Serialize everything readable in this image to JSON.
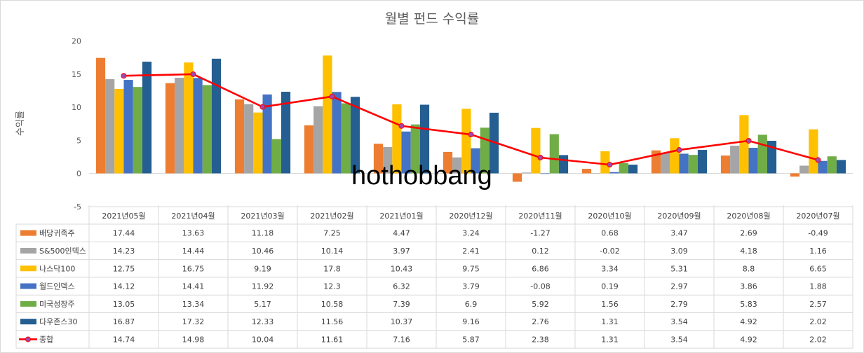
{
  "chart_data": {
    "type": "bar",
    "title": "월별 펀드 수익률",
    "ylabel": "수익률",
    "xlabel": "",
    "ylim": [
      -5,
      20
    ],
    "yticks": [
      -5,
      0,
      5,
      10,
      15,
      20
    ],
    "grid": false,
    "legend": "data-table",
    "categories": [
      "2021년05월",
      "2021년04월",
      "2021년03월",
      "2021년02월",
      "2021년01월",
      "2020년12월",
      "2020년11월",
      "2020년10월",
      "2020년09월",
      "2020년08월",
      "2020년07월"
    ],
    "series": [
      {
        "name": "배당귀족주",
        "color": "#ed7d31",
        "kind": "bar",
        "values": [
          17.44,
          13.63,
          11.18,
          7.25,
          4.47,
          3.24,
          -1.27,
          0.68,
          3.47,
          2.69,
          -0.49
        ]
      },
      {
        "name": "S&500인덱스",
        "color": "#a5a5a5",
        "kind": "bar",
        "values": [
          14.23,
          14.44,
          10.46,
          10.14,
          3.97,
          2.41,
          0.12,
          -0.02,
          3.09,
          4.18,
          1.16
        ]
      },
      {
        "name": "나스닥100",
        "color": "#ffc000",
        "kind": "bar",
        "values": [
          12.75,
          16.75,
          9.19,
          17.8,
          10.43,
          9.75,
          6.86,
          3.34,
          5.31,
          8.8,
          6.65
        ]
      },
      {
        "name": "월드인덱스",
        "color": "#4472c4",
        "kind": "bar",
        "values": [
          14.12,
          14.41,
          11.92,
          12.3,
          6.32,
          3.79,
          -0.08,
          0.19,
          2.97,
          3.86,
          1.88
        ]
      },
      {
        "name": "미국성장주",
        "color": "#70ad47",
        "kind": "bar",
        "values": [
          13.05,
          13.34,
          5.17,
          10.58,
          7.39,
          6.9,
          5.92,
          1.56,
          2.79,
          5.83,
          2.57
        ]
      },
      {
        "name": "다우존스30",
        "color": "#255e91",
        "kind": "bar",
        "values": [
          16.87,
          17.32,
          12.33,
          11.56,
          10.37,
          9.16,
          2.76,
          1.31,
          3.54,
          4.92,
          2.02
        ]
      },
      {
        "name": "종합",
        "color": "#ff0000",
        "kind": "line",
        "marker_color": "#9e48b0",
        "values": [
          14.74,
          14.98,
          10.04,
          11.61,
          7.16,
          5.87,
          2.38,
          1.31,
          3.54,
          4.92,
          2.02
        ]
      }
    ]
  },
  "watermark": "hothobbang"
}
